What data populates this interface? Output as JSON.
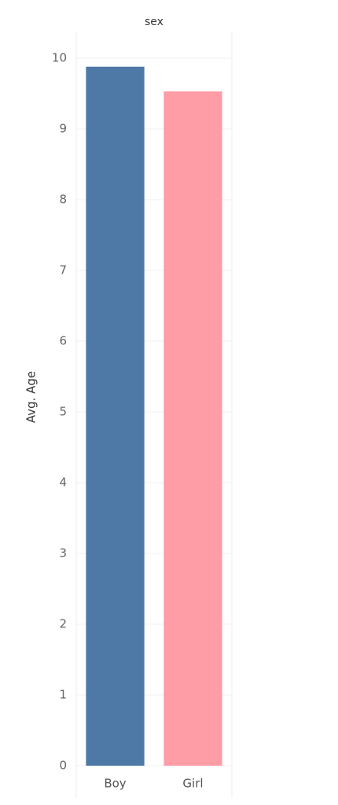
{
  "chart_data": {
    "type": "bar",
    "x_label": "sex",
    "y_label": "Avg. Age",
    "categories": [
      "Boy",
      "Girl"
    ],
    "values": [
      9.88,
      9.53
    ],
    "colors": [
      "#4e79a7",
      "#ff9da7"
    ],
    "ylim": [
      0,
      10
    ],
    "yticks": [
      0,
      1,
      2,
      3,
      4,
      5,
      6,
      7,
      8,
      9,
      10
    ],
    "grid": true
  }
}
